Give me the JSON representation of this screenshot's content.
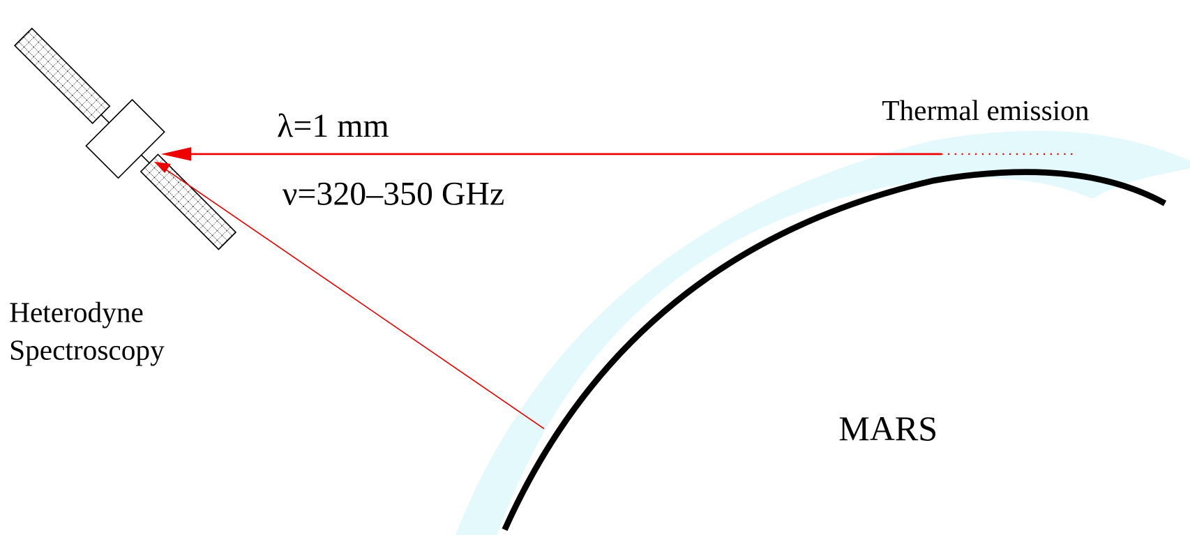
{
  "labels": {
    "thermal": "Thermal emission",
    "wavelength": "λ=1 mm",
    "frequency": "ν=320–350 GHz",
    "instrument_line1": "Heterodyne",
    "instrument_line2": "Spectroscopy",
    "planet": "MARS"
  }
}
